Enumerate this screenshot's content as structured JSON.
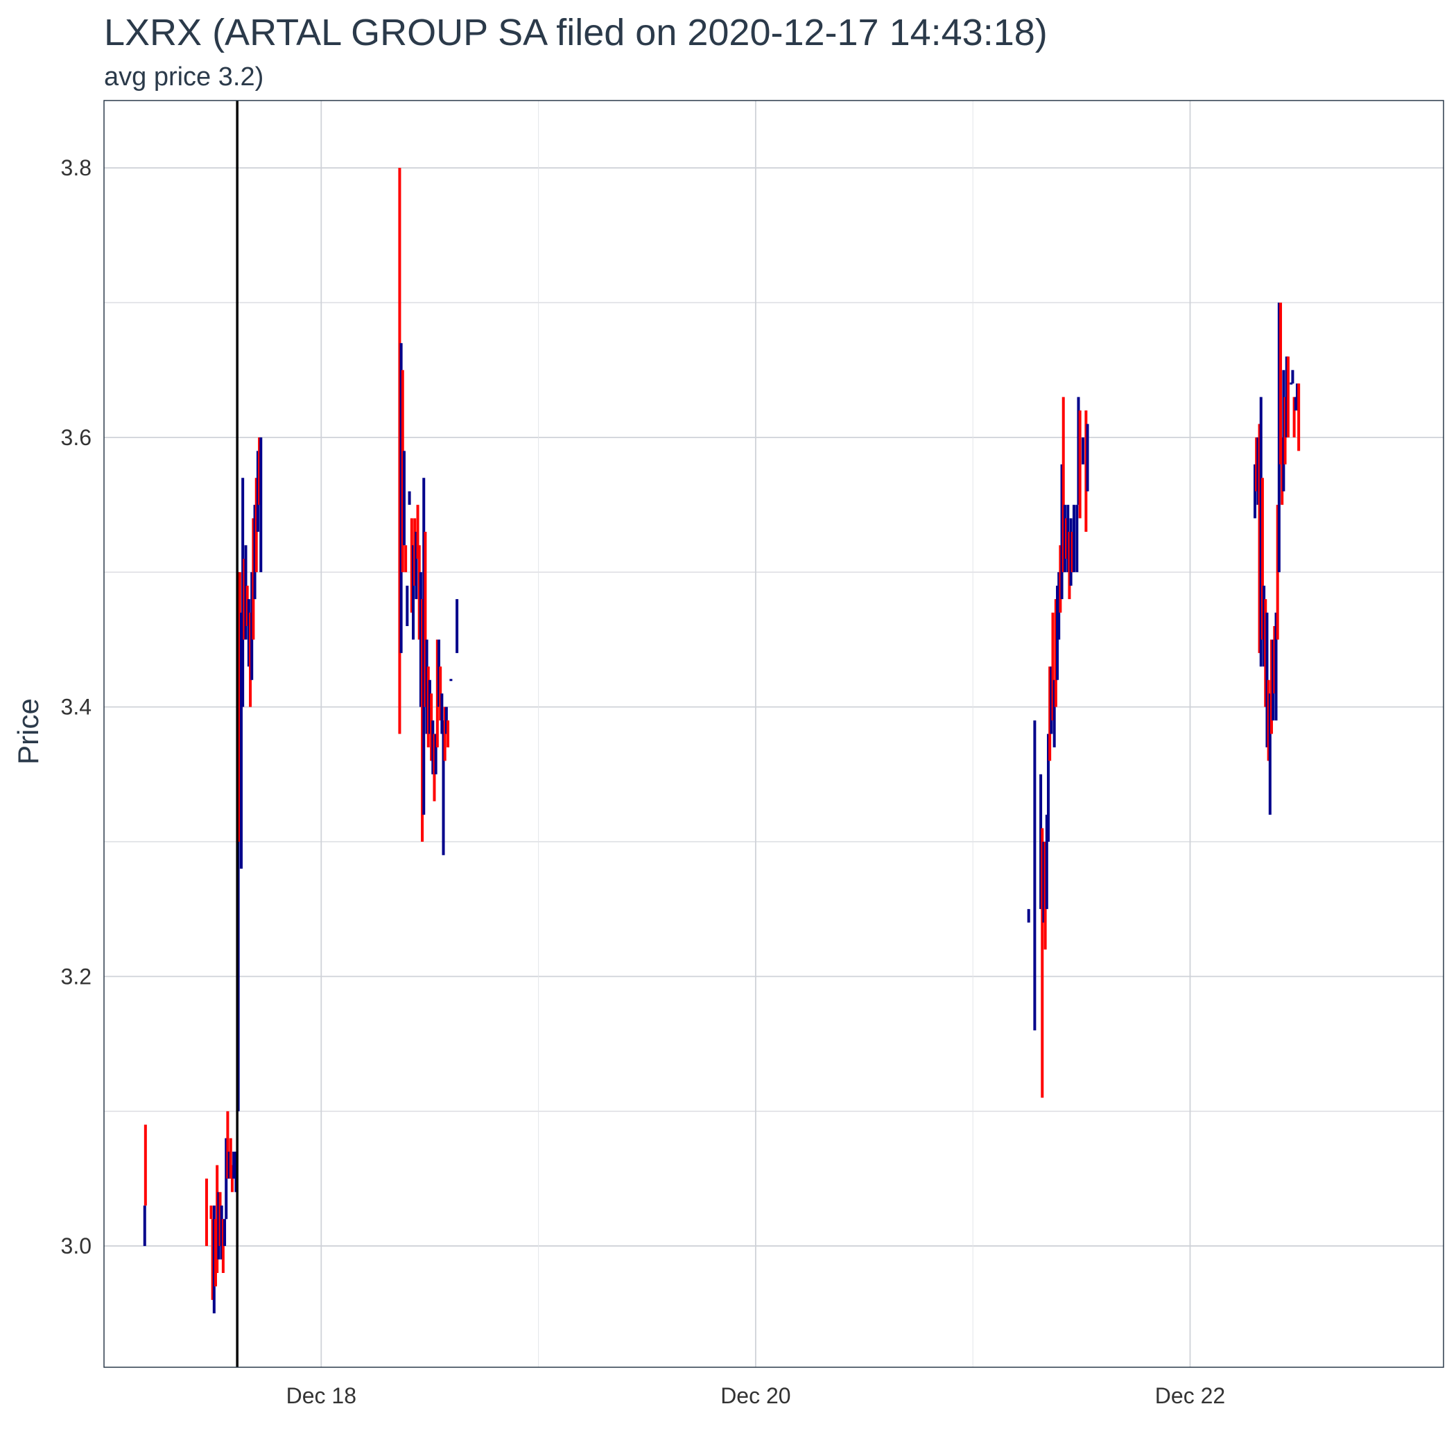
{
  "chart_data": {
    "type": "candlestick",
    "title": "LXRX (ARTAL GROUP SA filed on 2020-12-17 14:43:18)",
    "subtitle": "avg price 3.2)",
    "xlabel": "",
    "ylabel": "Price",
    "ylim": [
      2.91,
      3.85
    ],
    "xlim": [
      "2020-12-17 00:00",
      "2020-12-23 04:00"
    ],
    "y_ticks": [
      3.0,
      3.2,
      3.4,
      3.6,
      3.8
    ],
    "x_ticks": [
      {
        "label": "Dec 18",
        "t": "2020-12-18 00:00"
      },
      {
        "label": "Dec 20",
        "t": "2020-12-20 00:00"
      },
      {
        "label": "Dec 22",
        "t": "2020-12-22 00:00"
      }
    ],
    "grid": true,
    "event_marker": {
      "t": "2020-12-17 14:43:18",
      "color": "#000000"
    },
    "colors": {
      "up": "#00008b",
      "down": "#ff0000"
    },
    "series": [
      {
        "t": "2020-12-17 04:30",
        "lo": 3.0,
        "hi": 3.03,
        "dir": "up"
      },
      {
        "t": "2020-12-17 04:35",
        "lo": 3.03,
        "hi": 3.09,
        "dir": "down"
      },
      {
        "t": "2020-12-17 11:20",
        "lo": 3.0,
        "hi": 3.05,
        "dir": "down"
      },
      {
        "t": "2020-12-17 11:50",
        "lo": 3.02,
        "hi": 3.03,
        "dir": "down"
      },
      {
        "t": "2020-12-17 12:00",
        "lo": 2.96,
        "hi": 3.02,
        "dir": "down"
      },
      {
        "t": "2020-12-17 12:10",
        "lo": 2.95,
        "hi": 3.03,
        "dir": "up"
      },
      {
        "t": "2020-12-17 12:20",
        "lo": 2.97,
        "hi": 3.02,
        "dir": "down"
      },
      {
        "t": "2020-12-17 12:30",
        "lo": 2.98,
        "hi": 3.06,
        "dir": "down"
      },
      {
        "t": "2020-12-17 12:40",
        "lo": 2.99,
        "hi": 3.04,
        "dir": "up"
      },
      {
        "t": "2020-12-17 12:50",
        "lo": 3.0,
        "hi": 3.04,
        "dir": "down"
      },
      {
        "t": "2020-12-17 13:00",
        "lo": 2.99,
        "hi": 3.03,
        "dir": "up"
      },
      {
        "t": "2020-12-17 13:10",
        "lo": 2.98,
        "hi": 3.02,
        "dir": "down"
      },
      {
        "t": "2020-12-17 13:20",
        "lo": 3.0,
        "hi": 3.02,
        "dir": "up"
      },
      {
        "t": "2020-12-17 13:30",
        "lo": 3.02,
        "hi": 3.08,
        "dir": "up"
      },
      {
        "t": "2020-12-17 13:40",
        "lo": 3.05,
        "hi": 3.1,
        "dir": "down"
      },
      {
        "t": "2020-12-17 13:50",
        "lo": 3.05,
        "hi": 3.07,
        "dir": "up"
      },
      {
        "t": "2020-12-17 14:00",
        "lo": 3.05,
        "hi": 3.08,
        "dir": "down"
      },
      {
        "t": "2020-12-17 14:10",
        "lo": 3.04,
        "hi": 3.06,
        "dir": "down"
      },
      {
        "t": "2020-12-17 14:20",
        "lo": 3.05,
        "hi": 3.07,
        "dir": "up"
      },
      {
        "t": "2020-12-17 14:35",
        "lo": 3.04,
        "hi": 3.07,
        "dir": "up"
      },
      {
        "t": "2020-12-17 14:50",
        "lo": 3.1,
        "hi": 3.5,
        "dir": "up"
      },
      {
        "t": "2020-12-17 15:00",
        "lo": 3.3,
        "hi": 3.5,
        "dir": "down"
      },
      {
        "t": "2020-12-17 15:10",
        "lo": 3.28,
        "hi": 3.47,
        "dir": "up"
      },
      {
        "t": "2020-12-17 15:20",
        "lo": 3.4,
        "hi": 3.57,
        "dir": "up"
      },
      {
        "t": "2020-12-17 15:30",
        "lo": 3.45,
        "hi": 3.51,
        "dir": "down"
      },
      {
        "t": "2020-12-17 15:40",
        "lo": 3.45,
        "hi": 3.52,
        "dir": "up"
      },
      {
        "t": "2020-12-17 15:50",
        "lo": 3.46,
        "hi": 3.49,
        "dir": "down"
      },
      {
        "t": "2020-12-17 16:00",
        "lo": 3.43,
        "hi": 3.48,
        "dir": "up"
      },
      {
        "t": "2020-12-17 16:10",
        "lo": 3.4,
        "hi": 3.47,
        "dir": "down"
      },
      {
        "t": "2020-12-17 16:20",
        "lo": 3.42,
        "hi": 3.5,
        "dir": "up"
      },
      {
        "t": "2020-12-17 16:30",
        "lo": 3.45,
        "hi": 3.54,
        "dir": "down"
      },
      {
        "t": "2020-12-17 16:40",
        "lo": 3.48,
        "hi": 3.55,
        "dir": "up"
      },
      {
        "t": "2020-12-17 16:50",
        "lo": 3.5,
        "hi": 3.57,
        "dir": "down"
      },
      {
        "t": "2020-12-17 17:00",
        "lo": 3.53,
        "hi": 3.59,
        "dir": "up"
      },
      {
        "t": "2020-12-17 17:10",
        "lo": 3.55,
        "hi": 3.6,
        "dir": "down"
      },
      {
        "t": "2020-12-17 17:20",
        "lo": 3.5,
        "hi": 3.6,
        "dir": "up"
      },
      {
        "t": "2020-12-18 08:40",
        "lo": 3.38,
        "hi": 3.8,
        "dir": "down"
      },
      {
        "t": "2020-12-18 08:50",
        "lo": 3.44,
        "hi": 3.67,
        "dir": "up"
      },
      {
        "t": "2020-12-18 09:00",
        "lo": 3.5,
        "hi": 3.65,
        "dir": "down"
      },
      {
        "t": "2020-12-18 09:10",
        "lo": 3.52,
        "hi": 3.59,
        "dir": "up"
      },
      {
        "t": "2020-12-18 09:20",
        "lo": 3.5,
        "hi": 3.52,
        "dir": "down"
      },
      {
        "t": "2020-12-18 09:30",
        "lo": 3.46,
        "hi": 3.49,
        "dir": "up"
      },
      {
        "t": "2020-12-18 09:45",
        "lo": 3.55,
        "hi": 3.56,
        "dir": "up"
      },
      {
        "t": "2020-12-18 10:00",
        "lo": 3.47,
        "hi": 3.54,
        "dir": "down"
      },
      {
        "t": "2020-12-18 10:10",
        "lo": 3.45,
        "hi": 3.52,
        "dir": "up"
      },
      {
        "t": "2020-12-18 10:20",
        "lo": 3.49,
        "hi": 3.54,
        "dir": "down"
      },
      {
        "t": "2020-12-18 10:30",
        "lo": 3.48,
        "hi": 3.53,
        "dir": "up"
      },
      {
        "t": "2020-12-18 10:40",
        "lo": 3.51,
        "hi": 3.55,
        "dir": "down"
      },
      {
        "t": "2020-12-18 10:50",
        "lo": 3.45,
        "hi": 3.52,
        "dir": "down"
      },
      {
        "t": "2020-12-18 11:00",
        "lo": 3.4,
        "hi": 3.5,
        "dir": "up"
      },
      {
        "t": "2020-12-18 11:10",
        "lo": 3.3,
        "hi": 3.48,
        "dir": "down"
      },
      {
        "t": "2020-12-18 11:20",
        "lo": 3.32,
        "hi": 3.57,
        "dir": "up"
      },
      {
        "t": "2020-12-18 11:30",
        "lo": 3.4,
        "hi": 3.53,
        "dir": "down"
      },
      {
        "t": "2020-12-18 11:40",
        "lo": 3.38,
        "hi": 3.45,
        "dir": "up"
      },
      {
        "t": "2020-12-18 11:50",
        "lo": 3.37,
        "hi": 3.43,
        "dir": "down"
      },
      {
        "t": "2020-12-18 12:00",
        "lo": 3.38,
        "hi": 3.42,
        "dir": "up"
      },
      {
        "t": "2020-12-18 12:10",
        "lo": 3.36,
        "hi": 3.41,
        "dir": "down"
      },
      {
        "t": "2020-12-18 12:20",
        "lo": 3.35,
        "hi": 3.39,
        "dir": "up"
      },
      {
        "t": "2020-12-18 12:30",
        "lo": 3.33,
        "hi": 3.38,
        "dir": "down"
      },
      {
        "t": "2020-12-18 12:40",
        "lo": 3.35,
        "hi": 3.38,
        "dir": "up"
      },
      {
        "t": "2020-12-18 12:50",
        "lo": 3.37,
        "hi": 3.45,
        "dir": "down"
      },
      {
        "t": "2020-12-18 13:00",
        "lo": 3.4,
        "hi": 3.45,
        "dir": "up"
      },
      {
        "t": "2020-12-18 13:10",
        "lo": 3.39,
        "hi": 3.43,
        "dir": "down"
      },
      {
        "t": "2020-12-18 13:20",
        "lo": 3.38,
        "hi": 3.41,
        "dir": "up"
      },
      {
        "t": "2020-12-18 13:30",
        "lo": 3.29,
        "hi": 3.39,
        "dir": "up"
      },
      {
        "t": "2020-12-18 13:40",
        "lo": 3.36,
        "hi": 3.4,
        "dir": "down"
      },
      {
        "t": "2020-12-18 13:50",
        "lo": 3.38,
        "hi": 3.4,
        "dir": "up"
      },
      {
        "t": "2020-12-18 14:00",
        "lo": 3.37,
        "hi": 3.39,
        "dir": "down"
      },
      {
        "t": "2020-12-18 14:20",
        "lo": 3.42,
        "hi": 3.42,
        "dir": "up"
      },
      {
        "t": "2020-12-18 15:00",
        "lo": 3.44,
        "hi": 3.48,
        "dir": "up"
      },
      {
        "t": "2020-12-21 06:10",
        "lo": 3.24,
        "hi": 3.25,
        "dir": "up"
      },
      {
        "t": "2020-12-21 06:50",
        "lo": 3.16,
        "hi": 3.39,
        "dir": "up"
      },
      {
        "t": "2020-12-21 07:30",
        "lo": 3.25,
        "hi": 3.35,
        "dir": "up"
      },
      {
        "t": "2020-12-21 07:40",
        "lo": 3.11,
        "hi": 3.31,
        "dir": "down"
      },
      {
        "t": "2020-12-21 07:50",
        "lo": 3.24,
        "hi": 3.3,
        "dir": "up"
      },
      {
        "t": "2020-12-21 08:00",
        "lo": 3.22,
        "hi": 3.3,
        "dir": "down"
      },
      {
        "t": "2020-12-21 08:10",
        "lo": 3.25,
        "hi": 3.32,
        "dir": "up"
      },
      {
        "t": "2020-12-21 08:20",
        "lo": 3.3,
        "hi": 3.38,
        "dir": "up"
      },
      {
        "t": "2020-12-21 08:30",
        "lo": 3.36,
        "hi": 3.43,
        "dir": "down"
      },
      {
        "t": "2020-12-21 08:40",
        "lo": 3.38,
        "hi": 3.43,
        "dir": "up"
      },
      {
        "t": "2020-12-21 08:50",
        "lo": 3.39,
        "hi": 3.47,
        "dir": "down"
      },
      {
        "t": "2020-12-21 09:00",
        "lo": 3.37,
        "hi": 3.42,
        "dir": "up"
      },
      {
        "t": "2020-12-21 09:10",
        "lo": 3.4,
        "hi": 3.48,
        "dir": "down"
      },
      {
        "t": "2020-12-21 09:20",
        "lo": 3.42,
        "hi": 3.49,
        "dir": "up"
      },
      {
        "t": "2020-12-21 09:30",
        "lo": 3.45,
        "hi": 3.5,
        "dir": "up"
      },
      {
        "t": "2020-12-21 09:40",
        "lo": 3.47,
        "hi": 3.52,
        "dir": "down"
      },
      {
        "t": "2020-12-21 09:50",
        "lo": 3.48,
        "hi": 3.58,
        "dir": "up"
      },
      {
        "t": "2020-12-21 10:00",
        "lo": 3.5,
        "hi": 3.63,
        "dir": "down"
      },
      {
        "t": "2020-12-21 10:10",
        "lo": 3.5,
        "hi": 3.55,
        "dir": "up"
      },
      {
        "t": "2020-12-21 10:20",
        "lo": 3.51,
        "hi": 3.54,
        "dir": "down"
      },
      {
        "t": "2020-12-21 10:30",
        "lo": 3.5,
        "hi": 3.55,
        "dir": "up"
      },
      {
        "t": "2020-12-21 10:40",
        "lo": 3.48,
        "hi": 3.53,
        "dir": "down"
      },
      {
        "t": "2020-12-21 10:50",
        "lo": 3.49,
        "hi": 3.54,
        "dir": "up"
      },
      {
        "t": "2020-12-21 11:00",
        "lo": 3.5,
        "hi": 3.53,
        "dir": "down"
      },
      {
        "t": "2020-12-21 11:10",
        "lo": 3.5,
        "hi": 3.55,
        "dir": "up"
      },
      {
        "t": "2020-12-21 11:30",
        "lo": 3.5,
        "hi": 3.55,
        "dir": "up"
      },
      {
        "t": "2020-12-21 11:40",
        "lo": 3.55,
        "hi": 3.63,
        "dir": "up"
      },
      {
        "t": "2020-12-21 11:50",
        "lo": 3.54,
        "hi": 3.62,
        "dir": "down"
      },
      {
        "t": "2020-12-21 12:10",
        "lo": 3.58,
        "hi": 3.6,
        "dir": "up"
      },
      {
        "t": "2020-12-21 12:30",
        "lo": 3.53,
        "hi": 3.62,
        "dir": "down"
      },
      {
        "t": "2020-12-21 12:40",
        "lo": 3.56,
        "hi": 3.61,
        "dir": "up"
      },
      {
        "t": "2020-12-22 07:10",
        "lo": 3.54,
        "hi": 3.58,
        "dir": "up"
      },
      {
        "t": "2020-12-22 07:20",
        "lo": 3.56,
        "hi": 3.6,
        "dir": "down"
      },
      {
        "t": "2020-12-22 07:30",
        "lo": 3.55,
        "hi": 3.6,
        "dir": "up"
      },
      {
        "t": "2020-12-22 07:40",
        "lo": 3.44,
        "hi": 3.61,
        "dir": "down"
      },
      {
        "t": "2020-12-22 07:50",
        "lo": 3.43,
        "hi": 3.63,
        "dir": "up"
      },
      {
        "t": "2020-12-22 08:00",
        "lo": 3.45,
        "hi": 3.57,
        "dir": "down"
      },
      {
        "t": "2020-12-22 08:10",
        "lo": 3.43,
        "hi": 3.49,
        "dir": "up"
      },
      {
        "t": "2020-12-22 08:20",
        "lo": 3.4,
        "hi": 3.48,
        "dir": "down"
      },
      {
        "t": "2020-12-22 08:30",
        "lo": 3.37,
        "hi": 3.47,
        "dir": "up"
      },
      {
        "t": "2020-12-22 08:40",
        "lo": 3.36,
        "hi": 3.42,
        "dir": "down"
      },
      {
        "t": "2020-12-22 08:50",
        "lo": 3.32,
        "hi": 3.41,
        "dir": "up"
      },
      {
        "t": "2020-12-22 09:00",
        "lo": 3.38,
        "hi": 3.45,
        "dir": "down"
      },
      {
        "t": "2020-12-22 09:10",
        "lo": 3.39,
        "hi": 3.45,
        "dir": "up"
      },
      {
        "t": "2020-12-22 09:20",
        "lo": 3.41,
        "hi": 3.46,
        "dir": "down"
      },
      {
        "t": "2020-12-22 09:30",
        "lo": 3.39,
        "hi": 3.47,
        "dir": "up"
      },
      {
        "t": "2020-12-22 09:40",
        "lo": 3.45,
        "hi": 3.55,
        "dir": "down"
      },
      {
        "t": "2020-12-22 09:50",
        "lo": 3.5,
        "hi": 3.7,
        "dir": "up"
      },
      {
        "t": "2020-12-22 10:00",
        "lo": 3.58,
        "hi": 3.7,
        "dir": "down"
      },
      {
        "t": "2020-12-22 10:10",
        "lo": 3.55,
        "hi": 3.6,
        "dir": "down"
      },
      {
        "t": "2020-12-22 10:20",
        "lo": 3.56,
        "hi": 3.65,
        "dir": "up"
      },
      {
        "t": "2020-12-22 10:30",
        "lo": 3.58,
        "hi": 3.63,
        "dir": "down"
      },
      {
        "t": "2020-12-22 10:40",
        "lo": 3.6,
        "hi": 3.66,
        "dir": "up"
      },
      {
        "t": "2020-12-22 10:50",
        "lo": 3.6,
        "hi": 3.66,
        "dir": "down"
      },
      {
        "t": "2020-12-22 11:10",
        "lo": 3.64,
        "hi": 3.64,
        "dir": "up"
      },
      {
        "t": "2020-12-22 11:20",
        "lo": 3.64,
        "hi": 3.65,
        "dir": "up"
      },
      {
        "t": "2020-12-22 11:30",
        "lo": 3.6,
        "hi": 3.63,
        "dir": "down"
      },
      {
        "t": "2020-12-22 11:40",
        "lo": 3.62,
        "hi": 3.63,
        "dir": "up"
      },
      {
        "t": "2020-12-22 11:50",
        "lo": 3.62,
        "hi": 3.64,
        "dir": "up"
      },
      {
        "t": "2020-12-22 12:00",
        "lo": 3.59,
        "hi": 3.64,
        "dir": "down"
      }
    ]
  }
}
